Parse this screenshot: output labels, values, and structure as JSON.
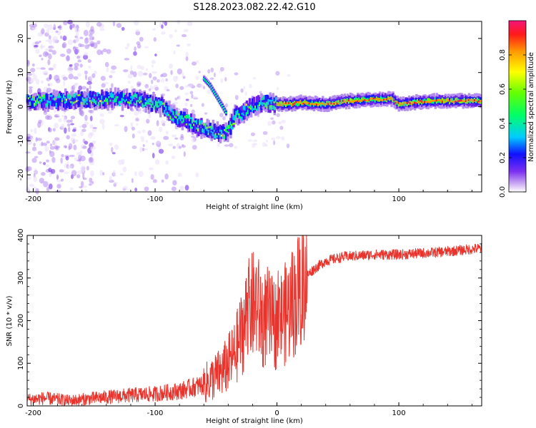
{
  "figure": {
    "title": "S128.2023.082.22.42.G10"
  },
  "chart_data": [
    {
      "type": "heatmap",
      "xlabel": "Height of straight line (km)",
      "ylabel": "Frequency (Hz)",
      "xlim": [
        -205,
        168
      ],
      "ylim": [
        -25,
        25
      ],
      "xticks": [
        -200,
        -100,
        0,
        100
      ],
      "yticks": [
        -20,
        -10,
        0,
        10,
        20
      ],
      "colorbar": {
        "label": "Normalized spectral amplitude",
        "range": [
          0,
          1
        ],
        "ticks": [
          "0.0",
          "0.2",
          "0.4",
          "0.6",
          "0.8"
        ],
        "tick_values": [
          0,
          0.2,
          0.4,
          0.6,
          0.8
        ]
      },
      "ridge": [
        [
          -205,
          1.5
        ],
        [
          -180,
          1.5
        ],
        [
          -155,
          2
        ],
        [
          -140,
          2
        ],
        [
          -120,
          2
        ],
        [
          -105,
          1
        ],
        [
          -95,
          0
        ],
        [
          -85,
          -3
        ],
        [
          -75,
          -4
        ],
        [
          -65,
          -6
        ],
        [
          -55,
          -7
        ],
        [
          -48,
          -8
        ],
        [
          -42,
          -8
        ],
        [
          -38,
          -6
        ],
        [
          -34,
          -2
        ],
        [
          -30,
          -3
        ],
        [
          -25,
          -1
        ],
        [
          -20,
          0
        ],
        [
          -10,
          1
        ],
        [
          0,
          0.5
        ],
        [
          10,
          0.5
        ],
        [
          20,
          1
        ],
        [
          40,
          0.5
        ],
        [
          60,
          1.5
        ],
        [
          80,
          2
        ],
        [
          95,
          2
        ],
        [
          100,
          0.5
        ],
        [
          110,
          1
        ],
        [
          130,
          1.5
        ],
        [
          168,
          1.5
        ]
      ],
      "branch": [
        [
          -60,
          8
        ],
        [
          -55,
          6
        ],
        [
          -50,
          3
        ],
        [
          -45,
          0
        ],
        [
          -42,
          -2
        ]
      ]
    },
    {
      "type": "line",
      "xlabel": "Height of straight line (km)",
      "ylabel": "SNR (10 * v/v)",
      "xlim": [
        -205,
        168
      ],
      "ylim": [
        0,
        400
      ],
      "xticks": [
        -200,
        -100,
        0,
        100
      ],
      "yticks": [
        0,
        100,
        200,
        300,
        400
      ],
      "series": [
        {
          "color": "#e8342c",
          "trend": [
            [
              -205,
              15
            ],
            [
              -190,
              18
            ],
            [
              -170,
              12
            ],
            [
              -150,
              18
            ],
            [
              -120,
              25
            ],
            [
              -100,
              28
            ],
            [
              -80,
              35
            ],
            [
              -60,
              50
            ],
            [
              -45,
              80
            ],
            [
              -35,
              120
            ],
            [
              -28,
              180
            ],
            [
              -22,
              230
            ],
            [
              -17,
              240
            ],
            [
              -12,
              200
            ],
            [
              -8,
              210
            ],
            [
              -3,
              190
            ],
            [
              2,
              200
            ],
            [
              8,
              220
            ],
            [
              15,
              250
            ],
            [
              22,
              300
            ],
            [
              30,
              320
            ],
            [
              40,
              340
            ],
            [
              55,
              350
            ],
            [
              80,
              355
            ],
            [
              100,
              355
            ],
            [
              130,
              360
            ],
            [
              150,
              365
            ],
            [
              168,
              370
            ]
          ]
        }
      ]
    }
  ]
}
